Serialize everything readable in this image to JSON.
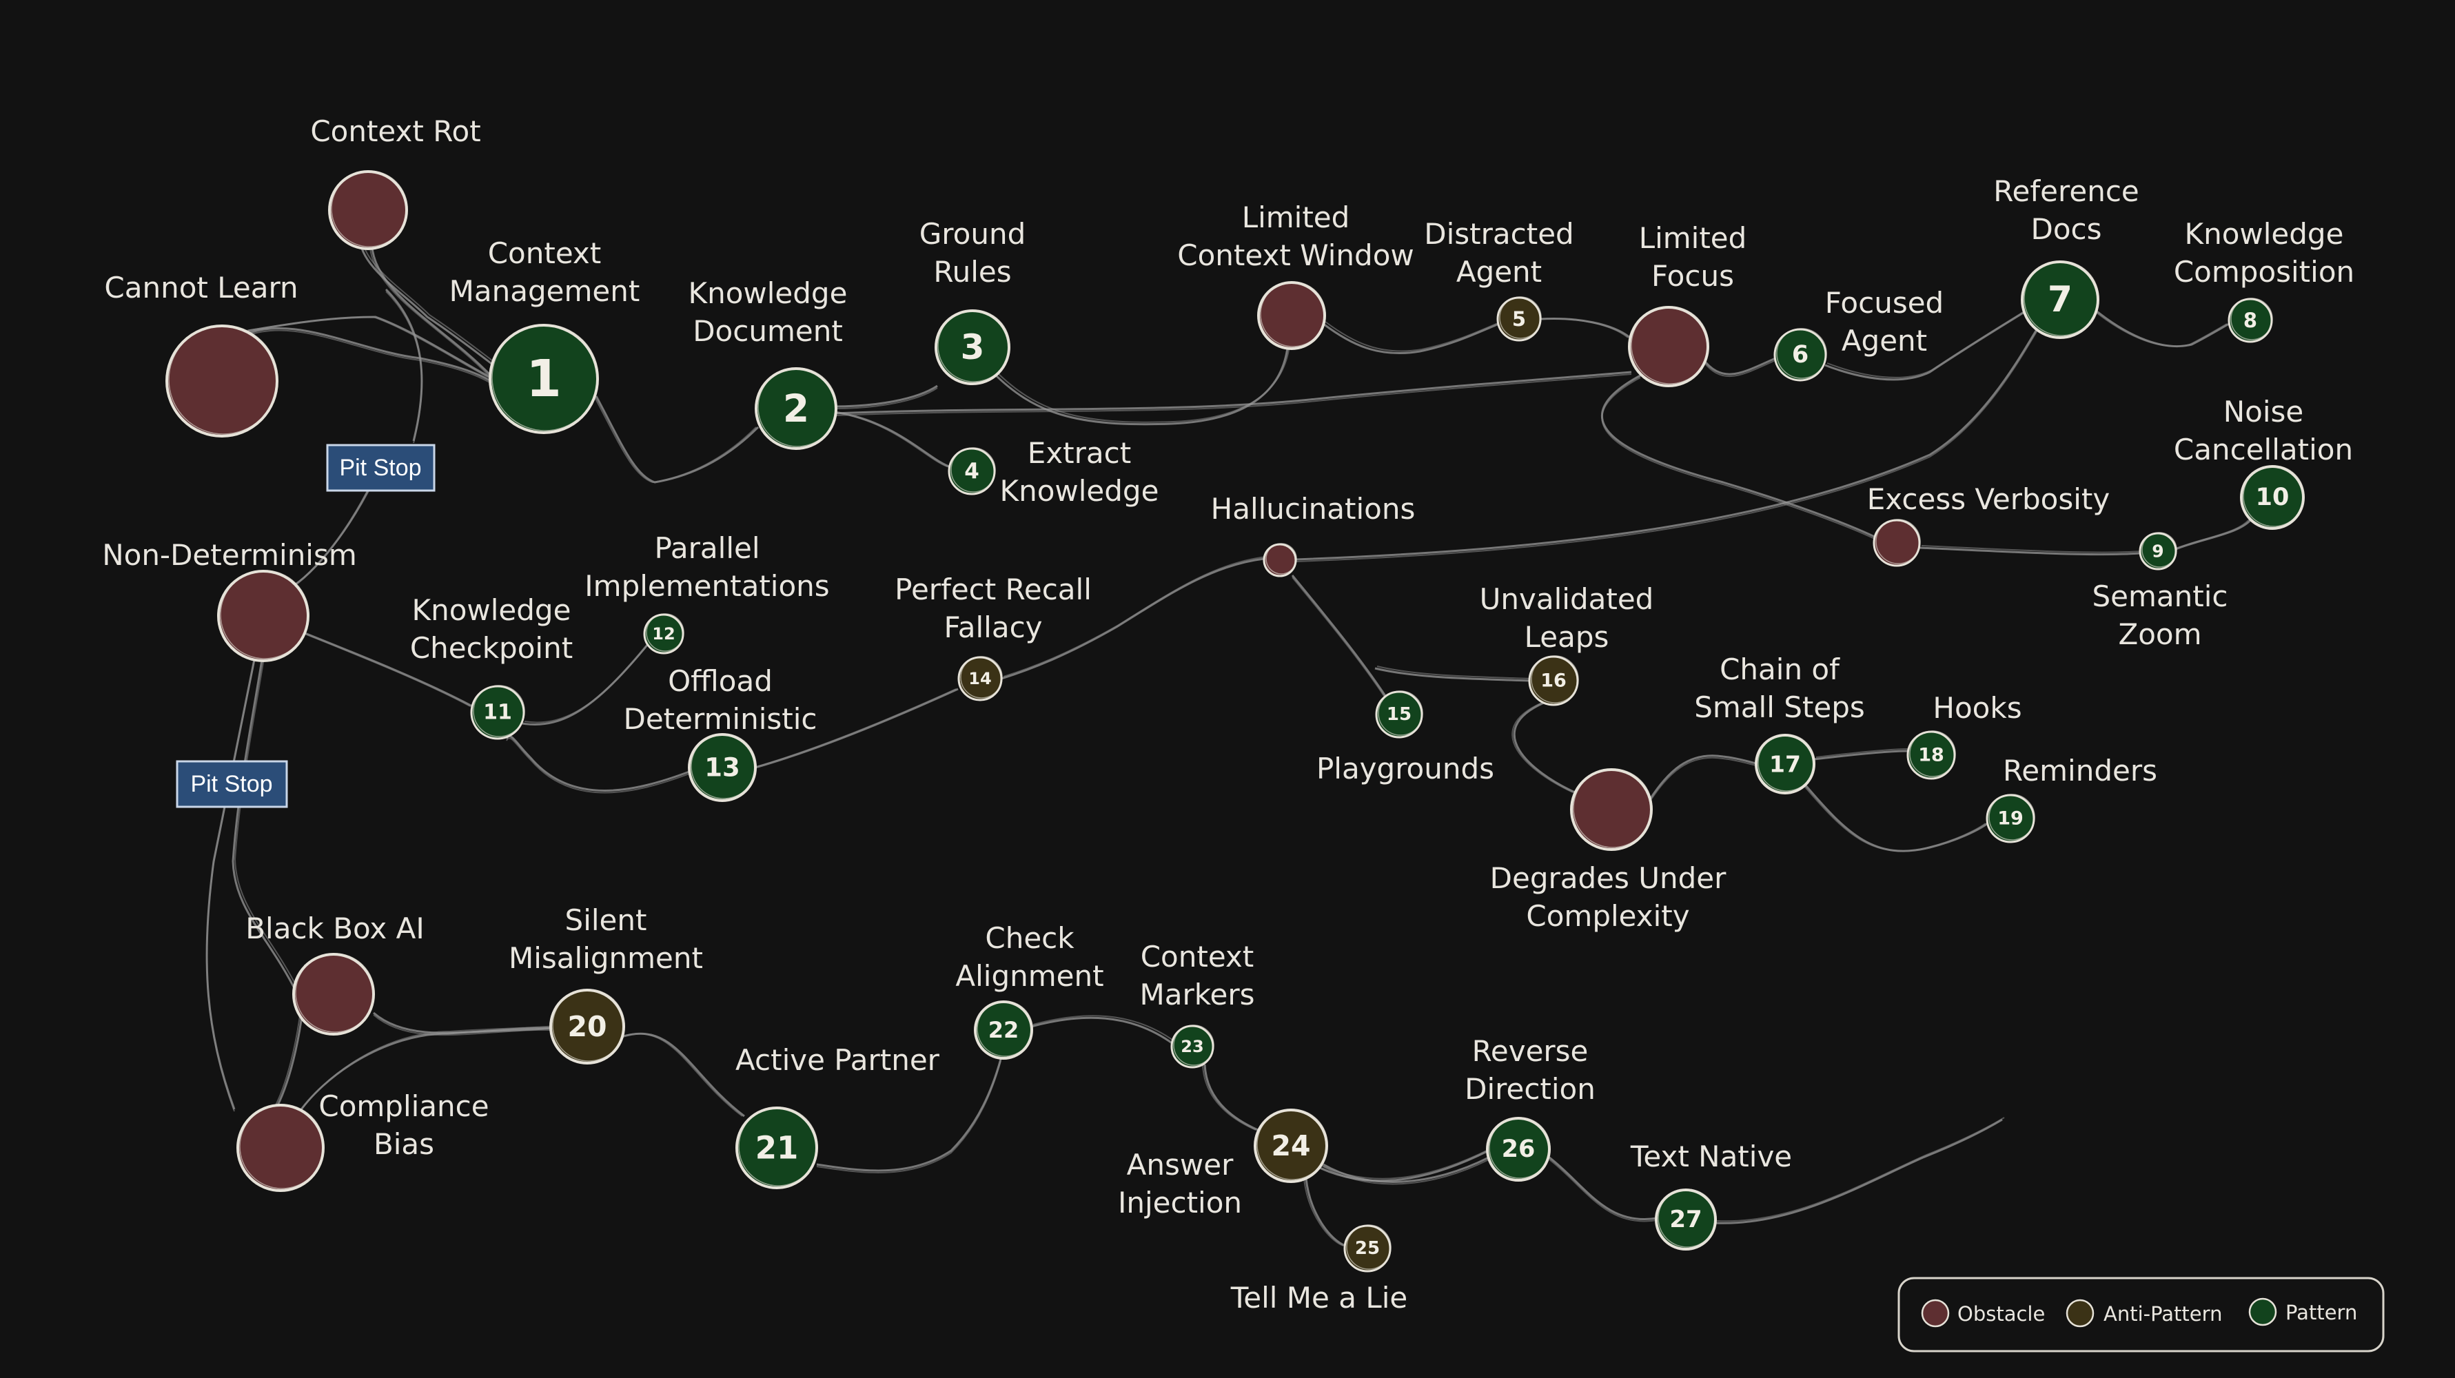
{
  "colors": {
    "background": "#121212",
    "obstacle_fill": "#5e2f31",
    "anti_pattern_fill": "#3b3216",
    "pattern_fill": "#12431d",
    "node_stroke": "#e6e2d8",
    "pit_stop_fill": "#2b4d78",
    "pit_stop_stroke": "#c9d6e8"
  },
  "legend": {
    "obstacle_label": "Obstacle",
    "anti_pattern_label": "Anti-Pattern",
    "pattern_label": "Pattern"
  },
  "pit_stops": [
    {
      "id": "pit-stop-1",
      "label": "Pit Stop"
    },
    {
      "id": "pit-stop-2",
      "label": "Pit Stop"
    }
  ],
  "obstacles": [
    {
      "id": "context-rot",
      "lines": [
        "Context Rot"
      ]
    },
    {
      "id": "cannot-learn",
      "lines": [
        "Cannot Learn"
      ]
    },
    {
      "id": "non-determinism",
      "lines": [
        "Non-Determinism"
      ]
    },
    {
      "id": "limited-context-window",
      "lines": [
        "Limited",
        "Context Window"
      ]
    },
    {
      "id": "limited-focus",
      "lines": [
        "Limited",
        "Focus"
      ]
    },
    {
      "id": "excess-verbosity",
      "lines": [
        "Excess Verbosity"
      ]
    },
    {
      "id": "hallucinations",
      "lines": [
        "Hallucinations"
      ]
    },
    {
      "id": "degrades-under-complexity",
      "lines": [
        "Degrades Under",
        "Complexity"
      ]
    },
    {
      "id": "black-box-ai",
      "lines": [
        "Black Box AI"
      ]
    },
    {
      "id": "compliance-bias",
      "lines": [
        "Compliance",
        "Bias"
      ]
    }
  ],
  "numbered_nodes": [
    {
      "number": "1",
      "kind": "pattern",
      "lines": [
        "Context",
        "Management"
      ]
    },
    {
      "number": "2",
      "kind": "pattern",
      "lines": [
        "Knowledge",
        "Document"
      ]
    },
    {
      "number": "3",
      "kind": "pattern",
      "lines": [
        "Ground",
        "Rules"
      ]
    },
    {
      "number": "4",
      "kind": "pattern",
      "lines": [
        "Extract",
        "Knowledge"
      ]
    },
    {
      "number": "5",
      "kind": "anti-pattern",
      "lines": [
        "Distracted",
        "Agent"
      ]
    },
    {
      "number": "6",
      "kind": "pattern",
      "lines": [
        "Focused",
        "Agent"
      ]
    },
    {
      "number": "7",
      "kind": "pattern",
      "lines": [
        "Reference",
        "Docs"
      ]
    },
    {
      "number": "8",
      "kind": "pattern",
      "lines": [
        "Knowledge",
        "Composition"
      ]
    },
    {
      "number": "9",
      "kind": "pattern",
      "lines": [
        "Semantic",
        "Zoom"
      ]
    },
    {
      "number": "10",
      "kind": "pattern",
      "lines": [
        "Noise",
        "Cancellation"
      ]
    },
    {
      "number": "11",
      "kind": "pattern",
      "lines": [
        "Knowledge",
        "Checkpoint"
      ]
    },
    {
      "number": "12",
      "kind": "pattern",
      "lines": [
        "Parallel",
        "Implementations"
      ]
    },
    {
      "number": "13",
      "kind": "pattern",
      "lines": [
        "Offload",
        "Deterministic"
      ]
    },
    {
      "number": "14",
      "kind": "anti-pattern",
      "lines": [
        "Perfect Recall",
        "Fallacy"
      ]
    },
    {
      "number": "15",
      "kind": "pattern",
      "lines": [
        "Playgrounds"
      ]
    },
    {
      "number": "16",
      "kind": "anti-pattern",
      "lines": [
        "Unvalidated",
        "Leaps"
      ]
    },
    {
      "number": "17",
      "kind": "pattern",
      "lines": [
        "Chain of",
        "Small Steps"
      ]
    },
    {
      "number": "18",
      "kind": "pattern",
      "lines": [
        "Hooks"
      ]
    },
    {
      "number": "19",
      "kind": "pattern",
      "lines": [
        "Reminders"
      ]
    },
    {
      "number": "20",
      "kind": "anti-pattern",
      "lines": [
        "Silent",
        "Misalignment"
      ]
    },
    {
      "number": "21",
      "kind": "pattern",
      "lines": [
        "Active Partner"
      ]
    },
    {
      "number": "22",
      "kind": "pattern",
      "lines": [
        "Check",
        "Alignment"
      ]
    },
    {
      "number": "23",
      "kind": "pattern",
      "lines": [
        "Context",
        "Markers"
      ]
    },
    {
      "number": "24",
      "kind": "anti-pattern",
      "lines": [
        "Answer",
        "Injection"
      ]
    },
    {
      "number": "25",
      "kind": "anti-pattern",
      "lines": [
        "Tell Me a Lie"
      ]
    },
    {
      "number": "26",
      "kind": "pattern",
      "lines": [
        "Reverse",
        "Direction"
      ]
    },
    {
      "number": "27",
      "kind": "pattern",
      "lines": [
        "Text Native"
      ]
    }
  ]
}
